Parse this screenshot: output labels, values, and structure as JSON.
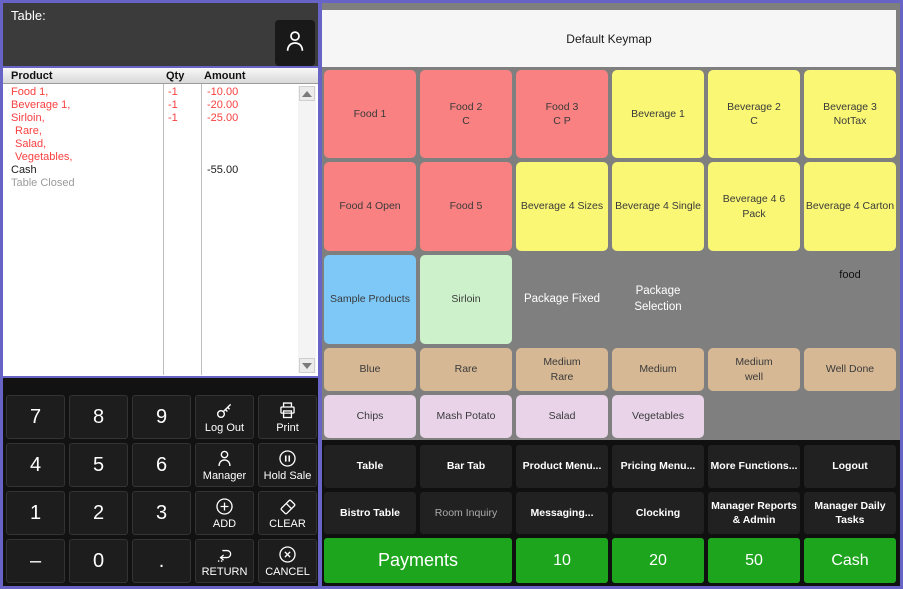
{
  "order_panel": {
    "table_label": "Table:",
    "columns": {
      "product": "Product",
      "qty": "Qty",
      "amount": "Amount"
    },
    "rows": [
      {
        "product": "Food 1,",
        "qty": "-1",
        "amount": "-10.00",
        "style": "red",
        "indent": false
      },
      {
        "product": "Beverage 1,",
        "qty": "-1",
        "amount": "-20.00",
        "style": "red",
        "indent": false
      },
      {
        "product": "Sirloin,",
        "qty": "-1",
        "amount": "-25.00",
        "style": "red",
        "indent": false
      },
      {
        "product": "Rare,",
        "qty": "",
        "amount": "",
        "style": "red",
        "indent": true
      },
      {
        "product": "Salad,",
        "qty": "",
        "amount": "",
        "style": "red",
        "indent": true
      },
      {
        "product": "Vegetables,",
        "qty": "",
        "amount": "",
        "style": "red",
        "indent": true
      },
      {
        "product": "Cash",
        "qty": "",
        "amount": "-55.00",
        "style": "black",
        "indent": false
      },
      {
        "product": "Table Closed",
        "qty": "",
        "amount": "",
        "style": "gray",
        "indent": false
      }
    ]
  },
  "keypad": {
    "keys": [
      {
        "label": "7",
        "type": "number"
      },
      {
        "label": "8",
        "type": "number"
      },
      {
        "label": "9",
        "type": "number"
      },
      {
        "label": "Log Out",
        "type": "function",
        "icon": "key-icon"
      },
      {
        "label": "Print",
        "type": "function",
        "icon": "printer-icon"
      },
      {
        "label": "4",
        "type": "number"
      },
      {
        "label": "5",
        "type": "number"
      },
      {
        "label": "6",
        "type": "number"
      },
      {
        "label": "Manager",
        "type": "function",
        "icon": "person-icon"
      },
      {
        "label": "Hold Sale",
        "type": "function",
        "icon": "pause-circle-icon"
      },
      {
        "label": "1",
        "type": "number"
      },
      {
        "label": "2",
        "type": "number"
      },
      {
        "label": "3",
        "type": "number"
      },
      {
        "label": "ADD",
        "type": "function",
        "icon": "plus-circle-icon"
      },
      {
        "label": "CLEAR",
        "type": "function",
        "icon": "eraser-icon"
      },
      {
        "label": "–",
        "type": "number"
      },
      {
        "label": "0",
        "type": "number"
      },
      {
        "label": ".",
        "type": "number"
      },
      {
        "label": "RETURN",
        "type": "function",
        "icon": "return-arrow-icon"
      },
      {
        "label": "CANCEL",
        "type": "function",
        "icon": "cancel-circle-icon"
      }
    ]
  },
  "keymap": {
    "title": "Default Keymap",
    "free_label": "food",
    "colors": {
      "salmon": "#F98181",
      "yellow": "#F9F774",
      "blue": "#7DC8F7",
      "green_light": "#CDF2CB",
      "tan": "#D6B894",
      "pink": "#E9D3E9",
      "dark": "#212121",
      "payment_green": "#1EA51E",
      "grid_background": "#7F7F7F",
      "accent_border": "#6764C6"
    },
    "buttons": [
      {
        "label": "Food 1",
        "row": 1,
        "col": 1,
        "style": "salmon"
      },
      {
        "label": "Food 2\nC",
        "row": 1,
        "col": 2,
        "style": "salmon"
      },
      {
        "label": "Food 3\nC P",
        "row": 1,
        "col": 3,
        "style": "salmon"
      },
      {
        "label": "Beverage 1",
        "row": 1,
        "col": 4,
        "style": "yellow"
      },
      {
        "label": "Beverage 2\nC",
        "row": 1,
        "col": 5,
        "style": "yellow"
      },
      {
        "label": "Beverage 3\nNotTax",
        "row": 1,
        "col": 6,
        "style": "yellow"
      },
      {
        "label": "Food 4 Open",
        "row": 2,
        "col": 1,
        "style": "salmon"
      },
      {
        "label": "Food 5",
        "row": 2,
        "col": 2,
        "style": "salmon"
      },
      {
        "label": "Beverage 4 Sizes",
        "row": 2,
        "col": 3,
        "style": "yellow"
      },
      {
        "label": "Beverage 4 Single",
        "row": 2,
        "col": 4,
        "style": "yellow"
      },
      {
        "label": "Beverage 4 6\nPack",
        "row": 2,
        "col": 5,
        "style": "yellow"
      },
      {
        "label": "Beverage 4 Carton",
        "row": 2,
        "col": 6,
        "style": "yellow"
      },
      {
        "label": "Sample Products",
        "row": 3,
        "col": 1,
        "style": "blue"
      },
      {
        "label": "Sirloin",
        "row": 3,
        "col": 2,
        "style": "green_light"
      },
      {
        "label": "Package Fixed",
        "row": 3,
        "col": 3,
        "style": "ghost"
      },
      {
        "label": "Package Selection",
        "row": 3,
        "col": 4,
        "style": "ghost"
      },
      {
        "label": "Blue",
        "row": 4,
        "col": 1,
        "style": "tan"
      },
      {
        "label": "Rare",
        "row": 4,
        "col": 2,
        "style": "tan"
      },
      {
        "label": "Medium\nRare",
        "row": 4,
        "col": 3,
        "style": "tan"
      },
      {
        "label": "Medium",
        "row": 4,
        "col": 4,
        "style": "tan"
      },
      {
        "label": "Medium\nwell",
        "row": 4,
        "col": 5,
        "style": "tan"
      },
      {
        "label": "Well Done",
        "row": 4,
        "col": 6,
        "style": "tan"
      },
      {
        "label": "Chips",
        "row": 5,
        "col": 1,
        "style": "pink"
      },
      {
        "label": "Mash Potato",
        "row": 5,
        "col": 2,
        "style": "pink"
      },
      {
        "label": "Salad",
        "row": 5,
        "col": 3,
        "style": "pink"
      },
      {
        "label": "Vegetables",
        "row": 5,
        "col": 4,
        "style": "pink"
      },
      {
        "label": "Table",
        "row": 6,
        "col": 1,
        "style": "dark"
      },
      {
        "label": "Bar Tab",
        "row": 6,
        "col": 2,
        "style": "dark"
      },
      {
        "label": "Product Menu...",
        "row": 6,
        "col": 3,
        "style": "dark"
      },
      {
        "label": "Pricing Menu...",
        "row": 6,
        "col": 4,
        "style": "dark"
      },
      {
        "label": "More Functions...",
        "row": 6,
        "col": 5,
        "style": "dark"
      },
      {
        "label": "Logout",
        "row": 6,
        "col": 6,
        "style": "dark"
      },
      {
        "label": "Bistro Table",
        "row": 7,
        "col": 1,
        "style": "dark"
      },
      {
        "label": "Room Inquiry",
        "row": 7,
        "col": 2,
        "style": "dark-muted"
      },
      {
        "label": "Messaging...",
        "row": 7,
        "col": 3,
        "style": "dark"
      },
      {
        "label": "Clocking",
        "row": 7,
        "col": 4,
        "style": "dark"
      },
      {
        "label": "Manager Reports\n& Admin",
        "row": 7,
        "col": 5,
        "style": "dark"
      },
      {
        "label": "Manager Daily\nTasks",
        "row": 7,
        "col": 6,
        "style": "dark"
      },
      {
        "label": "Payments",
        "row": 8,
        "col": 1,
        "span": 2,
        "style": "payment",
        "big": true
      },
      {
        "label": "10",
        "row": 8,
        "col": 3,
        "style": "payment"
      },
      {
        "label": "20",
        "row": 8,
        "col": 4,
        "style": "payment"
      },
      {
        "label": "50",
        "row": 8,
        "col": 5,
        "style": "payment"
      },
      {
        "label": "Cash",
        "row": 8,
        "col": 6,
        "style": "payment"
      }
    ]
  }
}
